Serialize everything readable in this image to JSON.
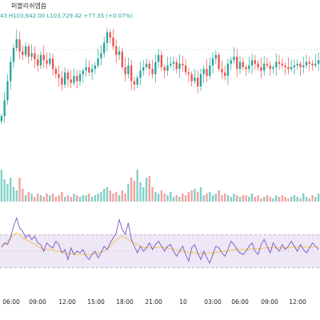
{
  "header": {
    "exchange_label": "퍼블리쉬엠씀"
  },
  "ohlc": {
    "open_fragment": "43",
    "high": "H103,642.00",
    "low": "L103,729.42",
    "change": "+77.35 (+0.07%)"
  },
  "colors": {
    "up": "#26a69a",
    "down": "#ef5350",
    "rsi_line": "#7e57c2",
    "rsi_ma": "#f5c242",
    "rsi_band": "#ede7f6"
  },
  "time_axis": [
    "06:00",
    "09:00",
    "12:00",
    "15:00",
    "18:00",
    "21:00",
    "10",
    "03:00",
    "06:00",
    "09:00",
    "12:00"
  ],
  "chart_data": [
    {
      "type": "candlestick",
      "title": "",
      "series": [
        {
          "name": "price",
          "close": [
            140,
            122,
            100,
            78,
            62,
            52,
            66,
            70,
            60,
            72,
            68,
            75,
            82,
            70,
            76,
            80,
            74,
            86,
            92,
            96,
            104,
            90,
            98,
            102,
            94,
            100,
            92,
            88,
            84,
            90,
            86,
            82,
            74,
            68,
            56,
            44,
            50,
            60,
            70,
            66,
            84,
            92,
            82,
            100,
            104,
            96,
            88,
            84,
            80,
            86,
            92,
            78,
            70,
            84,
            88,
            82,
            80,
            78,
            86,
            80,
            82,
            90,
            92,
            100,
            96,
            106,
            92,
            86,
            94,
            82,
            74,
            70,
            86,
            90,
            94,
            80,
            76,
            72,
            86,
            78,
            84,
            86,
            82,
            76,
            80,
            84,
            88,
            80,
            82,
            86,
            84,
            78,
            80,
            82,
            84,
            86,
            84,
            82,
            80,
            84,
            82,
            78,
            80,
            82,
            80,
            76
          ]
        },
        {
          "name": "volume",
          "values": [
            40,
            28,
            22,
            30,
            18,
            14,
            30,
            16,
            8,
            12,
            10,
            6,
            10,
            8,
            6,
            10,
            8,
            10,
            6,
            8,
            12,
            6,
            8,
            6,
            10,
            8,
            6,
            8,
            8,
            10,
            6,
            8,
            10,
            12,
            16,
            18,
            14,
            10,
            12,
            8,
            14,
            10,
            22,
            30,
            26,
            40,
            24,
            18,
            30,
            32,
            18,
            12,
            10,
            14,
            10,
            8,
            12,
            6,
            8,
            6,
            10,
            8,
            12,
            14,
            16,
            12,
            18,
            8,
            10,
            12,
            8,
            10,
            14,
            8,
            10,
            8,
            6,
            10,
            8,
            6,
            8,
            8,
            6,
            10,
            6,
            8,
            4,
            6,
            8,
            6,
            4,
            8,
            6,
            8,
            6,
            4,
            6,
            8,
            6,
            4,
            10,
            6,
            4,
            8,
            6,
            10
          ]
        }
      ]
    },
    {
      "type": "line",
      "title": "",
      "series": [
        {
          "name": "rsi",
          "values": [
            55,
            60,
            58,
            66,
            80,
            90,
            78,
            74,
            66,
            70,
            64,
            68,
            60,
            58,
            50,
            60,
            56,
            54,
            62,
            58,
            48,
            52,
            40,
            54,
            46,
            50,
            48,
            52,
            44,
            40,
            46,
            50,
            42,
            48,
            56,
            52,
            60,
            66,
            72,
            88,
            76,
            70,
            84,
            64,
            56,
            48,
            56,
            50,
            54,
            60,
            52,
            58,
            62,
            56,
            50,
            56,
            58,
            50,
            44,
            50,
            56,
            46,
            38,
            54,
            58,
            48,
            40,
            50,
            42,
            36,
            46,
            56,
            54,
            48,
            44,
            52,
            62,
            58,
            52,
            48,
            46,
            50,
            56,
            60,
            50,
            46,
            58,
            64,
            56,
            48,
            60,
            54,
            50,
            58,
            52,
            56,
            62,
            56,
            50,
            58,
            52,
            48,
            54,
            60,
            56,
            52
          ]
        },
        {
          "name": "rsi_ma",
          "values": [
            56,
            58,
            62,
            66,
            70,
            72,
            70,
            66,
            64,
            62,
            60,
            58,
            56,
            54,
            52,
            52,
            52,
            52,
            50,
            50,
            48,
            48,
            47,
            47,
            46,
            46,
            46,
            46,
            46,
            46,
            47,
            47,
            48,
            49,
            50,
            52,
            56,
            60,
            64,
            66,
            68,
            66,
            64,
            62,
            60,
            58,
            56,
            55,
            54,
            54,
            54,
            54,
            55,
            55,
            54,
            54,
            53,
            52,
            52,
            51,
            50,
            50,
            48,
            48,
            48,
            47,
            47,
            47,
            47,
            48,
            48,
            48,
            49,
            50,
            50,
            50,
            51,
            52,
            52,
            52,
            52,
            52,
            52,
            53,
            53,
            53,
            53,
            54,
            54,
            54,
            54,
            54,
            54,
            54,
            54,
            54,
            55,
            55,
            55,
            55,
            55,
            55,
            55,
            55,
            55,
            55
          ]
        }
      ],
      "ylim": [
        0,
        100
      ]
    }
  ]
}
